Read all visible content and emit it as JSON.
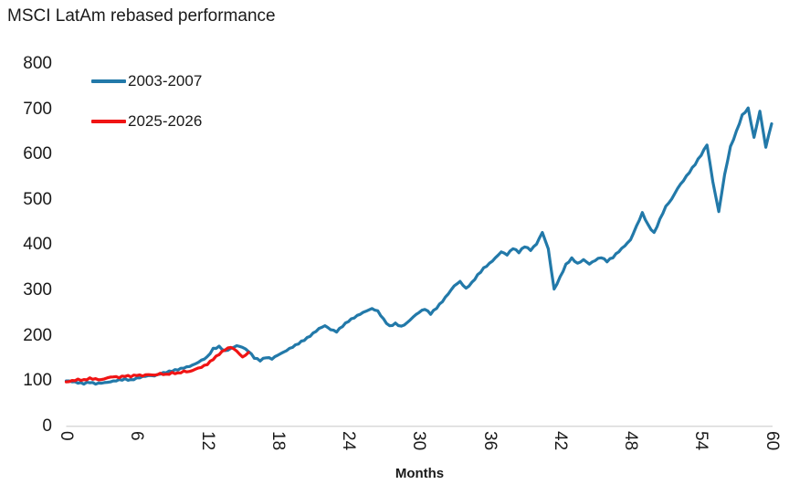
{
  "title": "MSCI LatAm rebased performance",
  "legend": {
    "items": [
      {
        "label": "2003-2007",
        "color": "#2279a9"
      },
      {
        "label": "2025-2026",
        "color": "#f01414"
      }
    ],
    "position": "top-left"
  },
  "colors": {
    "axis_line": "#d9d9d9",
    "text": "#1a1a1a",
    "background": "#ffffff"
  },
  "chart_data": {
    "type": "line",
    "title": "MSCI LatAm rebased performance",
    "xlabel": "Months",
    "ylabel": "",
    "xlim": [
      0,
      60
    ],
    "ylim": [
      0,
      800
    ],
    "x_ticks": [
      0,
      6,
      12,
      18,
      24,
      30,
      36,
      42,
      48,
      54,
      60
    ],
    "y_ticks": [
      0,
      100,
      200,
      300,
      400,
      500,
      600,
      700,
      800
    ],
    "grid": false,
    "legend_position": "top-left",
    "x_unit": "months since start, rebased to 100",
    "series": [
      {
        "name": "2003-2007",
        "color": "#2279a9",
        "line_width": 3.2,
        "x_start": 0,
        "x_step": 0.5,
        "values": [
          100,
          98,
          95,
          93,
          96,
          93,
          95,
          97,
          100,
          103,
          105,
          103,
          107,
          110,
          112,
          111,
          115,
          118,
          121,
          124,
          128,
          132,
          138,
          146,
          154,
          172,
          177,
          167,
          172,
          178,
          174,
          165,
          150,
          144,
          151,
          148,
          157,
          164,
          172,
          180,
          188,
          196,
          206,
          216,
          222,
          213,
          208,
          220,
          231,
          239,
          247,
          254,
          260,
          255,
          237,
          222,
          228,
          221,
          229,
          241,
          251,
          258,
          247,
          260,
          275,
          292,
          310,
          320,
          305,
          318,
          335,
          350,
          360,
          372,
          385,
          378,
          392,
          383,
          396,
          388,
          402,
          428,
          392,
          303,
          330,
          358,
          372,
          360,
          368,
          358,
          366,
          372,
          363,
          372,
          385,
          398,
          412,
          442,
          472,
          445,
          428,
          458,
          486,
          502,
          525,
          542,
          560,
          578,
          598,
          621,
          540,
          474,
          556,
          618,
          652,
          688,
          703,
          638,
          696,
          616,
          668
        ]
      },
      {
        "name": "2025-2026",
        "color": "#f01414",
        "line_width": 3.2,
        "x_start": 0,
        "x_step": 0.5,
        "values": [
          98,
          101,
          104,
          103,
          107,
          105,
          103,
          107,
          109,
          107,
          110,
          109,
          112,
          111,
          114,
          113,
          117,
          115,
          119,
          118,
          122,
          121,
          126,
          130,
          136,
          147,
          158,
          168,
          174,
          166,
          153,
          163
        ]
      }
    ]
  }
}
